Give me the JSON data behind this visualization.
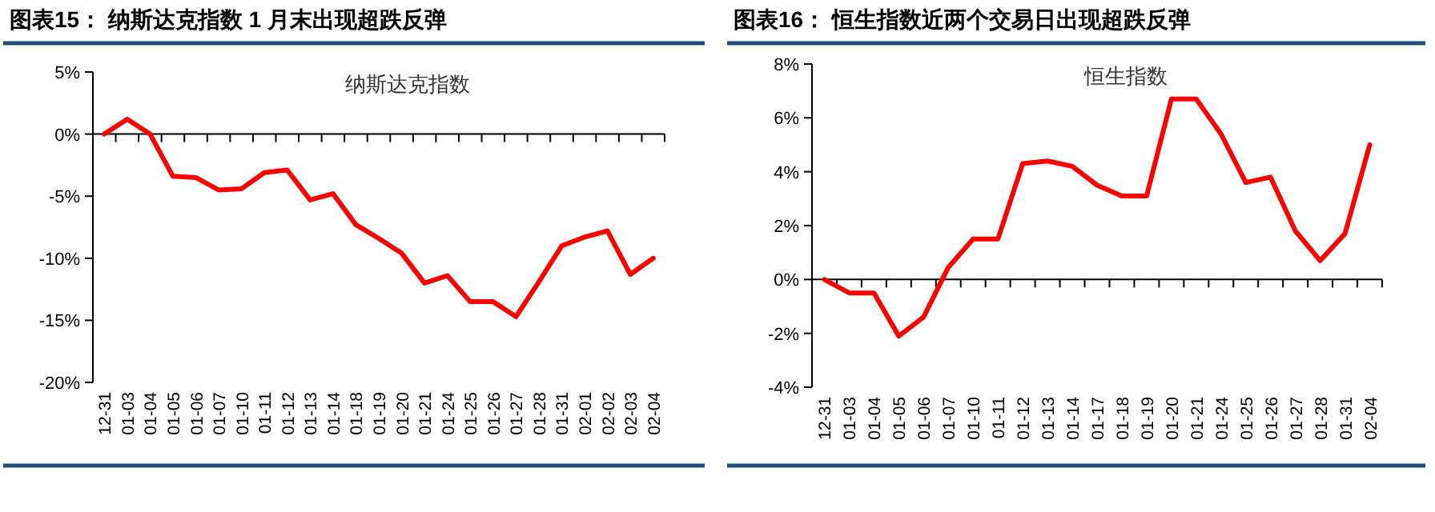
{
  "chart_data": [
    {
      "type": "line",
      "title": "图表15：  纳斯达克指数 1 月末出现超跌反弹",
      "categories": [
        "12-31",
        "01-03",
        "01-04",
        "01-05",
        "01-06",
        "01-07",
        "01-10",
        "01-11",
        "01-12",
        "01-13",
        "01-14",
        "01-18",
        "01-19",
        "01-20",
        "01-21",
        "01-24",
        "01-25",
        "01-26",
        "01-27",
        "01-28",
        "01-31",
        "02-01",
        "02-02",
        "02-03",
        "02-04"
      ],
      "series": [
        {
          "name": "纳斯达克指数",
          "color": "#ff0000",
          "values": [
            0,
            1.2,
            0,
            -3.4,
            -3.5,
            -4.5,
            -4.4,
            -3.1,
            -2.9,
            -5.3,
            -4.8,
            -7.3,
            -8.4,
            -9.6,
            -12.0,
            -11.4,
            -13.5,
            -13.5,
            -14.7,
            -11.9,
            -9.0,
            -8.3,
            -7.8,
            -11.3,
            -10.0
          ]
        }
      ],
      "ylim": [
        -20,
        5
      ],
      "yticks": [
        {
          "value": -20,
          "label": "-20%"
        },
        {
          "value": -15,
          "label": "-15%"
        },
        {
          "value": -10,
          "label": "-10%"
        },
        {
          "value": -5,
          "label": "-5%"
        },
        {
          "value": 0,
          "label": "0%"
        },
        {
          "value": 5,
          "label": "5%"
        }
      ]
    },
    {
      "type": "line",
      "title": "图表16：  恒生指数近两个交易日出现超跌反弹",
      "categories": [
        "12-31",
        "01-03",
        "01-04",
        "01-05",
        "01-06",
        "01-07",
        "01-10",
        "01-11",
        "01-12",
        "01-13",
        "01-14",
        "01-17",
        "01-18",
        "01-19",
        "01-20",
        "01-21",
        "01-24",
        "01-25",
        "01-26",
        "01-27",
        "01-28",
        "01-31",
        "02-04"
      ],
      "series": [
        {
          "name": "恒生指数",
          "color": "#ff0000",
          "values": [
            0,
            -0.5,
            -0.5,
            -2.1,
            -1.4,
            0.45,
            1.5,
            1.5,
            4.3,
            4.4,
            4.2,
            3.5,
            3.1,
            3.1,
            6.7,
            6.7,
            5.4,
            3.6,
            3.8,
            1.8,
            0.7,
            1.7,
            5.0
          ]
        }
      ],
      "ylim": [
        -4,
        8
      ],
      "yticks": [
        {
          "value": -4,
          "label": "-4%"
        },
        {
          "value": -2,
          "label": "-2%"
        },
        {
          "value": 0,
          "label": "0%"
        },
        {
          "value": 2,
          "label": "2%"
        },
        {
          "value": 4,
          "label": "4%"
        },
        {
          "value": 6,
          "label": "6%"
        },
        {
          "value": 8,
          "label": "8%"
        }
      ]
    }
  ]
}
